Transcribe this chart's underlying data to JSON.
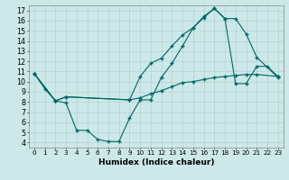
{
  "xlabel": "Humidex (Indice chaleur)",
  "bg_color": "#cce8e8",
  "line_color": "#006666",
  "xlim": [
    -0.5,
    23.5
  ],
  "ylim": [
    3.5,
    17.5
  ],
  "xticks": [
    0,
    1,
    2,
    3,
    4,
    5,
    6,
    7,
    8,
    9,
    10,
    11,
    12,
    13,
    14,
    15,
    16,
    17,
    18,
    19,
    20,
    21,
    22,
    23
  ],
  "yticks": [
    4,
    5,
    6,
    7,
    8,
    9,
    10,
    11,
    12,
    13,
    14,
    15,
    16,
    17
  ],
  "line1_x": [
    0,
    1,
    2,
    3,
    4,
    5,
    6,
    7,
    8,
    9,
    10,
    11,
    12,
    13,
    14,
    15,
    16,
    17,
    18,
    19,
    20,
    21,
    22,
    23
  ],
  "line1_y": [
    10.8,
    9.3,
    8.1,
    7.9,
    5.2,
    5.2,
    4.3,
    4.1,
    4.1,
    6.4,
    8.2,
    8.2,
    10.4,
    11.8,
    13.5,
    15.3,
    16.3,
    17.2,
    16.2,
    9.8,
    9.8,
    11.5,
    11.5,
    10.5
  ],
  "line2_x": [
    0,
    2,
    3,
    9,
    10,
    11,
    12,
    13,
    14,
    15,
    16,
    17,
    18,
    19,
    20,
    21,
    23
  ],
  "line2_y": [
    10.8,
    8.1,
    8.5,
    8.2,
    10.5,
    11.8,
    12.3,
    13.5,
    14.6,
    15.3,
    16.4,
    17.2,
    16.2,
    16.2,
    14.7,
    12.4,
    10.4
  ],
  "line3_x": [
    0,
    2,
    3,
    9,
    10,
    11,
    12,
    13,
    14,
    15,
    16,
    17,
    18,
    19,
    20,
    21,
    23
  ],
  "line3_y": [
    10.8,
    8.1,
    8.5,
    8.2,
    8.4,
    8.8,
    9.1,
    9.5,
    9.9,
    10.0,
    10.2,
    10.4,
    10.5,
    10.6,
    10.7,
    10.7,
    10.5
  ],
  "xlabel_fontsize": 6.5,
  "tick_fontsize_x": 5.2,
  "tick_fontsize_y": 5.8
}
